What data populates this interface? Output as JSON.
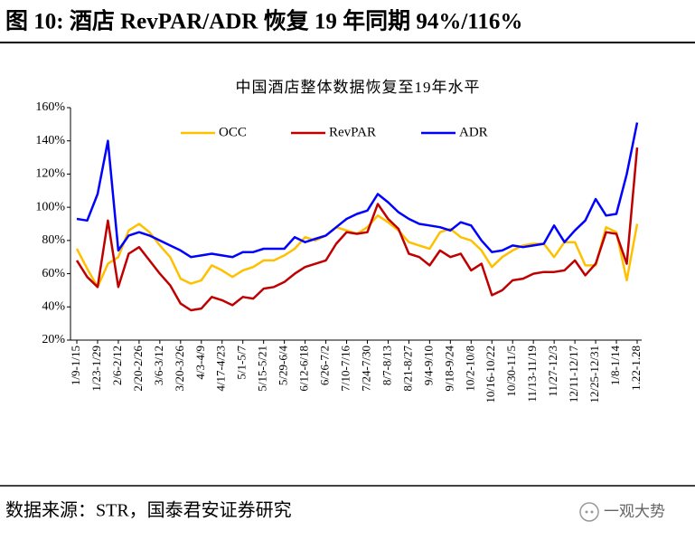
{
  "header": {
    "title": "图 10: 酒店 RevPAR/ADR 恢复 19 年同期 94%/116%"
  },
  "chart_data": {
    "type": "line",
    "title": "中国酒店整体数据恢复至19年水平",
    "categories": [
      "1/9-1/15",
      null,
      "1/23-1/29",
      null,
      "2/6-2/12",
      null,
      "2/20-2/26",
      null,
      "3/6-3/12",
      null,
      "3/20-3/26",
      null,
      "4/3-4/9",
      null,
      "4/17-4/23",
      null,
      "5/1-5/7",
      null,
      "5/15-5/21",
      null,
      "5/29-6/4",
      null,
      "6/12-6/18",
      null,
      "6/26-7/2",
      null,
      "7/10-7/16",
      null,
      "7/24-7/30",
      null,
      "8/7-8/13",
      null,
      "8/21-8/27",
      null,
      "9/4-9/10",
      null,
      "9/18-9/24",
      null,
      "10/2-10/8",
      null,
      "10/16-10/22",
      null,
      "10/30-11/5",
      null,
      "11/13-11/19",
      null,
      "11/27-12/3",
      null,
      "12/11-12/17",
      null,
      "12/25-12/31",
      null,
      "1/8-1/14",
      null,
      "1.22-1.28"
    ],
    "series": [
      {
        "name": "OCC",
        "color": "#ffc000",
        "values": [
          75,
          63,
          52,
          66,
          70,
          86,
          90,
          85,
          77,
          70,
          57,
          54,
          56,
          65,
          62,
          58,
          62,
          64,
          68,
          68,
          71,
          75,
          82,
          80,
          83,
          88,
          86,
          84,
          88,
          95,
          91,
          86,
          79,
          77,
          75,
          85,
          87,
          82,
          80,
          74,
          64,
          70,
          74,
          77,
          78,
          78,
          70,
          79,
          79,
          65,
          65,
          88,
          85,
          56,
          90
        ]
      },
      {
        "name": "RevPAR",
        "color": "#c00000",
        "values": [
          68,
          58,
          52,
          92,
          52,
          72,
          76,
          68,
          60,
          53,
          42,
          38,
          39,
          46,
          44,
          41,
          46,
          45,
          51,
          52,
          55,
          60,
          64,
          66,
          68,
          78,
          85,
          84,
          85,
          102,
          93,
          87,
          72,
          70,
          65,
          74,
          70,
          72,
          62,
          66,
          47,
          50,
          56,
          57,
          60,
          61,
          61,
          62,
          68,
          59,
          66,
          85,
          84,
          66,
          136
        ]
      },
      {
        "name": "ADR",
        "color": "#0000ff",
        "values": [
          93,
          92,
          108,
          140,
          74,
          83,
          85,
          83,
          80,
          77,
          74,
          70,
          71,
          72,
          71,
          70,
          73,
          73,
          75,
          75,
          75,
          82,
          79,
          81,
          83,
          88,
          93,
          96,
          98,
          108,
          103,
          97,
          93,
          90,
          89,
          88,
          86,
          91,
          89,
          80,
          73,
          74,
          77,
          76,
          77,
          78,
          89,
          79,
          86,
          92,
          105,
          95,
          96,
          120,
          151
        ]
      }
    ],
    "ylim": [
      20,
      160
    ],
    "yticks": [
      {
        "value": 20,
        "label": "20%"
      },
      {
        "value": 40,
        "label": "40%"
      },
      {
        "value": 60,
        "label": "60%"
      },
      {
        "value": 80,
        "label": "80%"
      },
      {
        "value": 100,
        "label": "100%"
      },
      {
        "value": 120,
        "label": "120%"
      },
      {
        "value": 140,
        "label": "140%"
      },
      {
        "value": 160,
        "label": "160%"
      }
    ],
    "grid": false,
    "legend": "top"
  },
  "footer": {
    "source": "数据来源：STR，国泰君安证券研究",
    "watermark": "一观大势"
  }
}
